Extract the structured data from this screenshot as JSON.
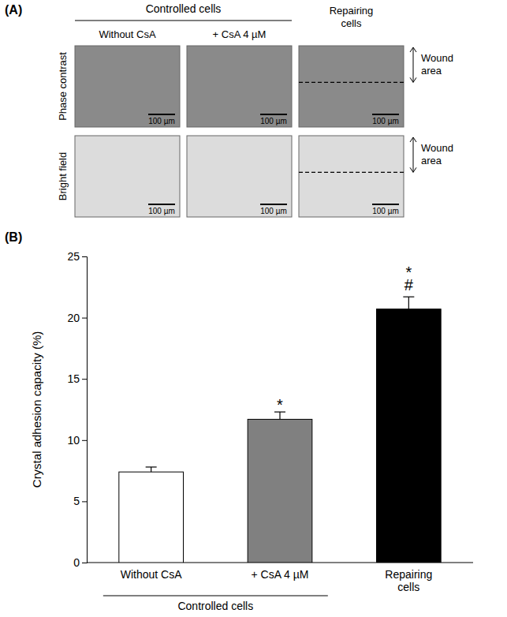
{
  "panel_a": {
    "label": "(A)",
    "group_header": "Controlled cells",
    "columns": [
      "Without CsA",
      "+ CsA 4 µM",
      "Repairing cells"
    ],
    "rows": [
      "Phase contrast",
      "Bright field"
    ],
    "scale_bar": "100 µm",
    "wound_label": "Wound area"
  },
  "chart_data": {
    "type": "bar",
    "panel_label": "(B)",
    "categories": [
      "Without CsA",
      "+ CsA 4 µM",
      "Repairing cells"
    ],
    "values": [
      7.4,
      11.7,
      20.7
    ],
    "errors": [
      0.4,
      0.6,
      1.0
    ],
    "colors": [
      "#ffffff",
      "#808080",
      "#000000"
    ],
    "y_label": "Crystal adhesion capacity (%)",
    "ylim": [
      0,
      25
    ],
    "yticks": [
      0,
      5,
      10,
      15,
      20,
      25
    ],
    "annotations": [
      {
        "category": "+ CsA 4 µM",
        "text": "*"
      },
      {
        "category": "Repairing cells",
        "text": "#"
      },
      {
        "category": "Repairing cells",
        "text": "*"
      }
    ],
    "group_label": "Controlled cells",
    "group_categories": [
      "Without CsA",
      "+ CsA 4 µM"
    ]
  }
}
